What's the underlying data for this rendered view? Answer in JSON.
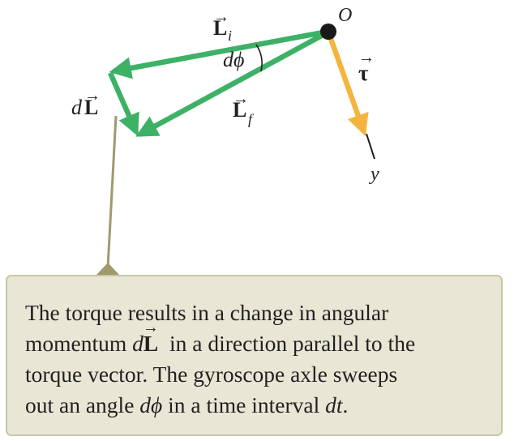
{
  "labels": {
    "origin": "O",
    "L_initial": {
      "main": "L",
      "sub": "i"
    },
    "L_final": {
      "main": "L",
      "sub": "f"
    },
    "dL": {
      "prefix": "d",
      "main": "L"
    },
    "dphi": "dϕ",
    "tau": "τ",
    "y_axis": "y"
  },
  "caption": {
    "line1": "The torque results in a change in angular",
    "line2_a": "momentum ",
    "line2_d": "d",
    "line2_L": "L",
    "line2_b": "  in a direction parallel to the",
    "line3": "torque vector. The gyroscope axle sweeps",
    "line4_a": "out an angle ",
    "line4_dphi": "dϕ",
    "line4_b": " in a time interval ",
    "line4_dt": "dt",
    "line4_c": "."
  },
  "colors": {
    "angular_momentum_vectors": "#3db166",
    "torque_vector": "#f4b53f",
    "callout_box": "#e8e7d6",
    "callout_border": "#c9c6a4",
    "leader_line": "#9e9a6e",
    "origin_dot": "#1a1a1a"
  }
}
